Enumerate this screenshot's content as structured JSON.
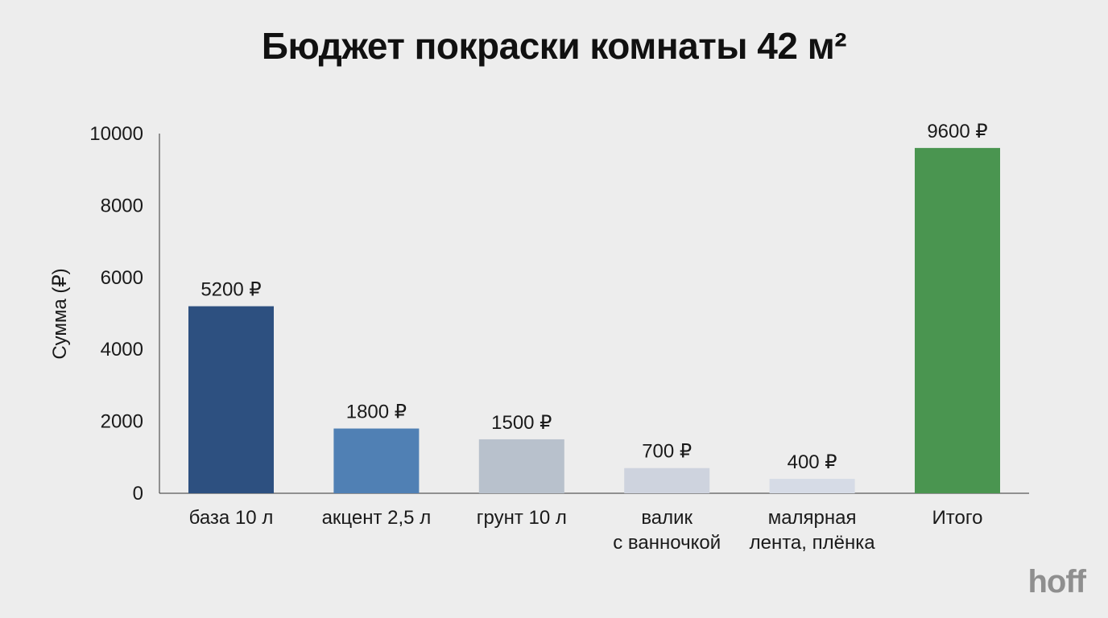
{
  "title": "Бюджет покраски комнаты 42 м²",
  "brand": "hoff",
  "chart_data": {
    "type": "bar",
    "title": "Бюджет покраски комнаты 42 м²",
    "ylabel": "Сумма (₽)",
    "xlabel": "",
    "ylim": [
      0,
      10000
    ],
    "yticks": [
      0,
      2000,
      4000,
      6000,
      8000,
      10000
    ],
    "grid": false,
    "categories": [
      [
        "база 10 л"
      ],
      [
        "акцент 2,5 л"
      ],
      [
        "грунт 10 л"
      ],
      [
        "валик",
        "с ванночкой"
      ],
      [
        "малярная",
        "лента, плёнка"
      ],
      [
        "Итого"
      ]
    ],
    "values": [
      5200,
      1800,
      1500,
      700,
      400,
      9600
    ],
    "value_labels": [
      "5200 ₽",
      "1800 ₽",
      "1500 ₽",
      "700 ₽",
      "400 ₽",
      "9600 ₽"
    ],
    "colors": [
      "#2d5080",
      "#5080b4",
      "#b8c1cc",
      "#ced3de",
      "#d6dbe6",
      "#4a9550"
    ]
  }
}
